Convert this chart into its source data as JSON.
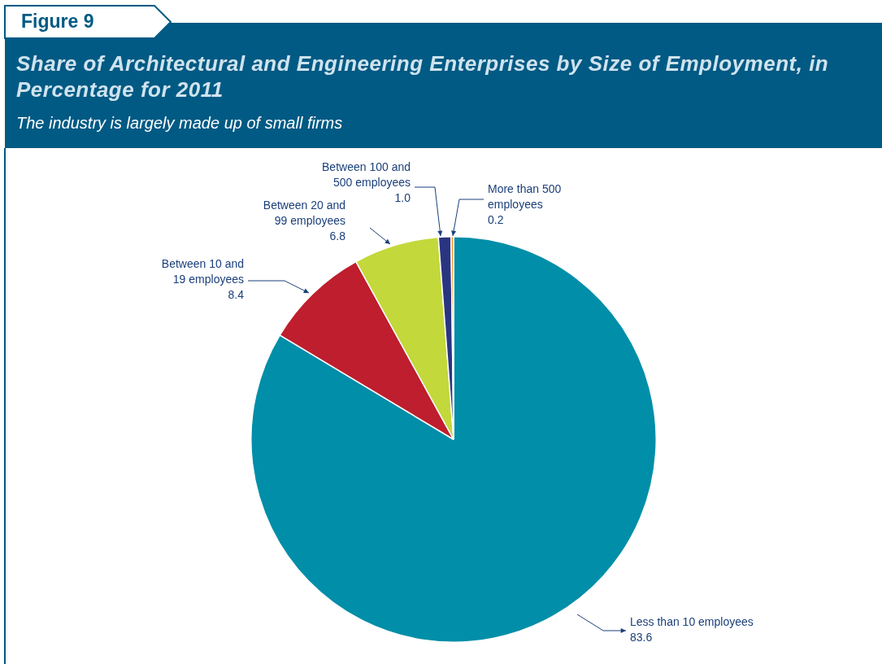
{
  "chart_data": {
    "type": "pie",
    "title": "Share of Architectural and Engineering Enterprises by Size of Employment, in Percentage for 2011",
    "subtitle": "The industry is largely made up of small firms",
    "categories": [
      "Less than 10 employees",
      "Between 10 and 19 employees",
      "Between 20 and 99 employees",
      "Between 100 and 500 employees",
      "More than 500 employees"
    ],
    "values": [
      83.6,
      8.4,
      6.8,
      1.0,
      0.2
    ],
    "colors": [
      "#008ea8",
      "#be1e2d",
      "#c3d83a",
      "#2a3580",
      "#f7941d"
    ],
    "value_labels": [
      "83.6",
      "8.4",
      "6.8",
      "1.0",
      "0.2"
    ],
    "legend": false,
    "annotations": [
      "Figure 9"
    ]
  }
}
